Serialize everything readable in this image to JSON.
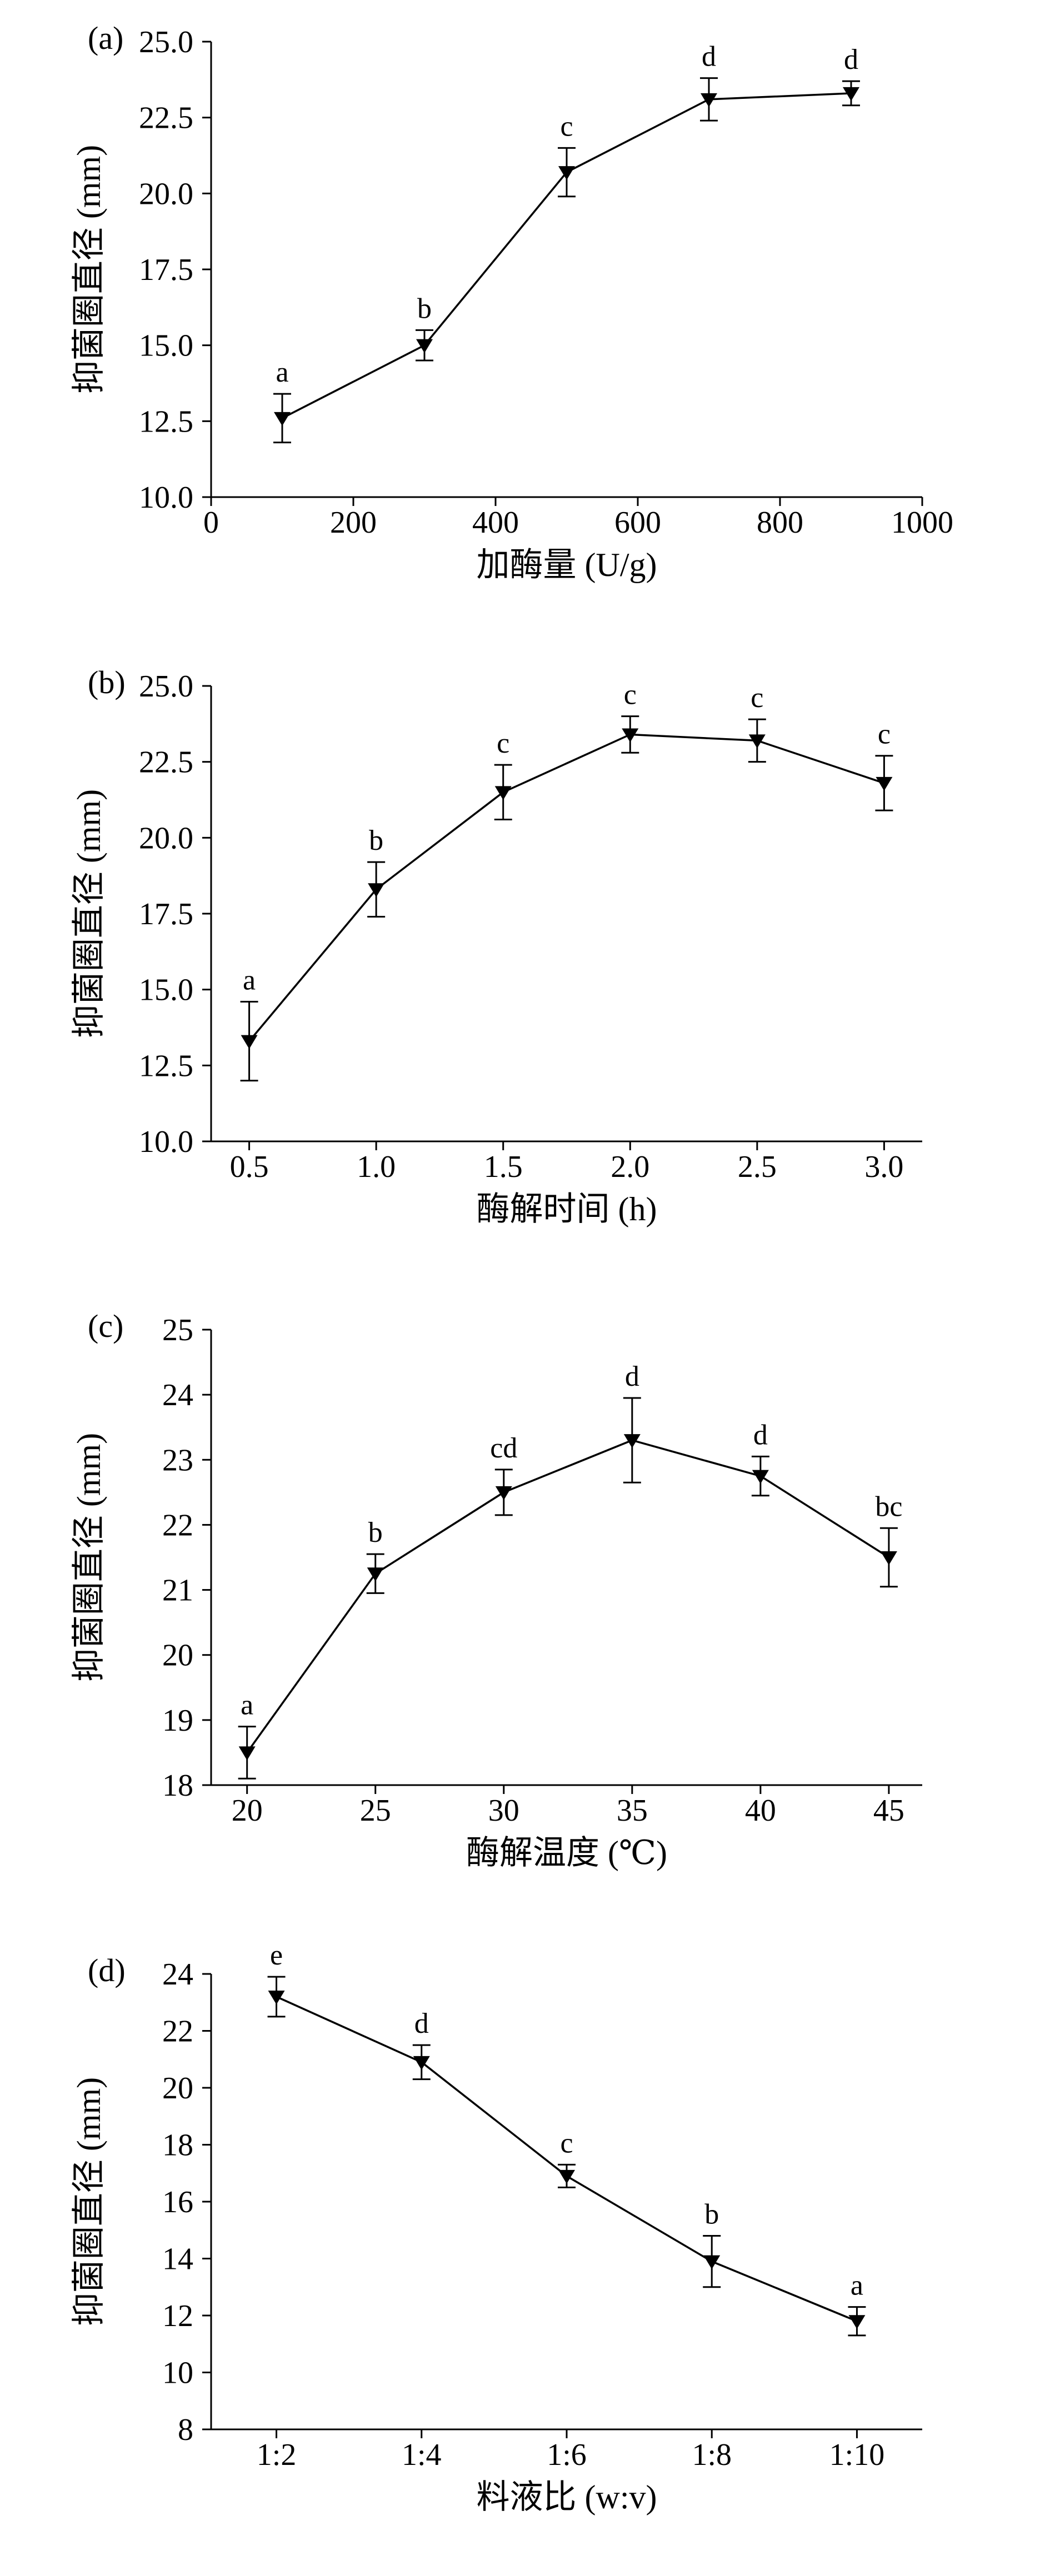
{
  "page": {
    "background": "#ffffff",
    "line_color": "#000000",
    "marker": "filled-down-triangle"
  },
  "chart_data": [
    {
      "panel_label": "(a)",
      "type": "line",
      "xlabel": "加酶量 (U/g)",
      "ylabel": "抑菌圈直径 (mm)",
      "xlim": [
        0,
        1000
      ],
      "ylim": [
        10.0,
        25.0
      ],
      "xticks": [
        0,
        200,
        400,
        600,
        800,
        1000
      ],
      "xtick_labels": [
        "0",
        "200",
        "400",
        "600",
        "800",
        "1000"
      ],
      "yticks": [
        10.0,
        12.5,
        15.0,
        17.5,
        20.0,
        22.5,
        25.0
      ],
      "ytick_labels": [
        "10.0",
        "12.5",
        "15.0",
        "17.5",
        "20.0",
        "22.5",
        "25.0"
      ],
      "x": [
        100,
        300,
        500,
        700,
        900
      ],
      "values": [
        12.6,
        15.0,
        20.7,
        23.1,
        23.3
      ],
      "errors": [
        0.8,
        0.5,
        0.8,
        0.7,
        0.4
      ],
      "point_labels": [
        "a",
        "b",
        "c",
        "d",
        "d"
      ],
      "grid": false,
      "legend": null
    },
    {
      "panel_label": "(b)",
      "type": "line",
      "xlabel": "酶解时间 (h)",
      "ylabel": "抑菌圈直径 (mm)",
      "xlim": [
        0.35,
        3.15
      ],
      "ylim": [
        10.0,
        25.0
      ],
      "xticks": [
        0.5,
        1.0,
        1.5,
        2.0,
        2.5,
        3.0
      ],
      "xtick_labels": [
        "0.5",
        "1.0",
        "1.5",
        "2.0",
        "2.5",
        "3.0"
      ],
      "yticks": [
        10.0,
        12.5,
        15.0,
        17.5,
        20.0,
        22.5,
        25.0
      ],
      "ytick_labels": [
        "10.0",
        "12.5",
        "15.0",
        "17.5",
        "20.0",
        "22.5",
        "25.0"
      ],
      "x": [
        0.5,
        1.0,
        1.5,
        2.0,
        2.5,
        3.0
      ],
      "values": [
        13.3,
        18.3,
        21.5,
        23.4,
        23.2,
        21.8
      ],
      "errors": [
        1.3,
        0.9,
        0.9,
        0.6,
        0.7,
        0.9
      ],
      "point_labels": [
        "a",
        "b",
        "c",
        "c",
        "c",
        "c"
      ],
      "grid": false,
      "legend": null
    },
    {
      "panel_label": "(c)",
      "type": "line",
      "xlabel": "酶解温度 (℃)",
      "ylabel": "抑菌圈直径 (mm)",
      "xlim": [
        18.6,
        46.3
      ],
      "ylim": [
        18,
        25
      ],
      "xticks": [
        20,
        25,
        30,
        35,
        40,
        45
      ],
      "xtick_labels": [
        "20",
        "25",
        "30",
        "35",
        "40",
        "45"
      ],
      "yticks": [
        18,
        19,
        20,
        21,
        22,
        23,
        24,
        25
      ],
      "ytick_labels": [
        "18",
        "19",
        "20",
        "21",
        "22",
        "23",
        "24",
        "25"
      ],
      "x": [
        20,
        25,
        30,
        35,
        40,
        45
      ],
      "values": [
        18.5,
        21.25,
        22.5,
        23.3,
        22.75,
        21.5
      ],
      "errors": [
        0.4,
        0.3,
        0.35,
        0.65,
        0.3,
        0.45
      ],
      "point_labels": [
        "a",
        "b",
        "cd",
        "d",
        "d",
        "bc"
      ],
      "grid": false,
      "legend": null
    },
    {
      "panel_label": "(d)",
      "type": "line",
      "xlabel": "料液比 (w:v)",
      "ylabel": "抑菌圈直径 (mm)",
      "xlim": [
        0.55,
        5.45
      ],
      "ylim": [
        8,
        24
      ],
      "xticks": [
        1,
        2,
        3,
        4,
        5
      ],
      "xtick_labels": [
        "1:2",
        "1:4",
        "1:6",
        "1:8",
        "1:10"
      ],
      "yticks": [
        8,
        10,
        12,
        14,
        16,
        18,
        20,
        22,
        24
      ],
      "ytick_labels": [
        "8",
        "10",
        "12",
        "14",
        "16",
        "18",
        "20",
        "22",
        "24"
      ],
      "x": [
        1,
        2,
        3,
        4,
        5
      ],
      "values": [
        23.2,
        20.9,
        16.9,
        13.9,
        11.8
      ],
      "errors": [
        0.7,
        0.6,
        0.4,
        0.9,
        0.5
      ],
      "point_labels": [
        "e",
        "d",
        "c",
        "b",
        "a"
      ],
      "grid": false,
      "legend": null
    }
  ]
}
